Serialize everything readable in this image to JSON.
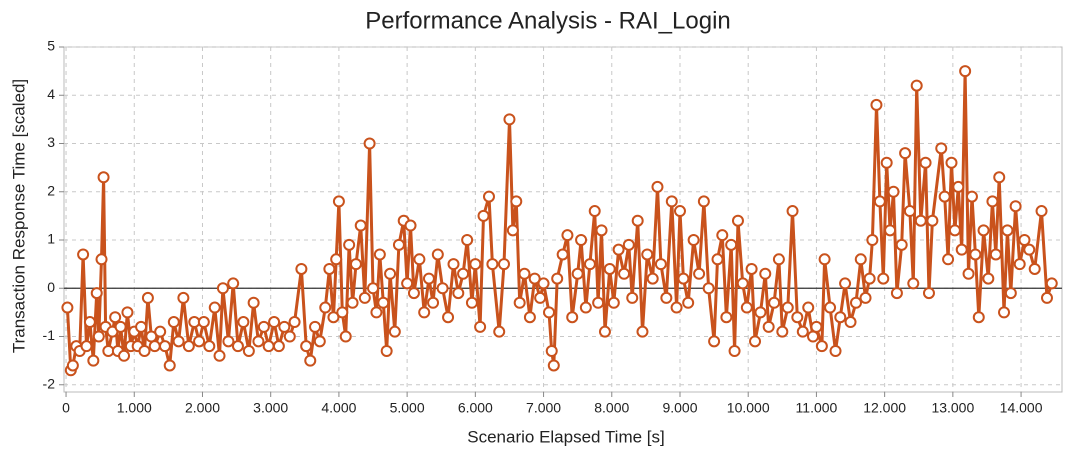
{
  "chart_data": {
    "type": "line",
    "title": "Performance Analysis - RAI_Login",
    "x_label": "Scenario Elapsed Time [s]",
    "y_label": "Transaction Response Time [scaled]",
    "color": "#c9521c",
    "grid": true,
    "xlim": [
      -0.03,
      14.6
    ],
    "ylim": [
      -2.15,
      5
    ],
    "xticks": [
      0,
      {
        "value": 1,
        "label": "1.000"
      },
      {
        "value": 2,
        "label": "2.000"
      },
      {
        "value": 3,
        "label": "3.000"
      },
      {
        "value": 4,
        "label": "4.000"
      },
      {
        "value": 5,
        "label": "5.000"
      },
      {
        "value": 6,
        "label": "6.000"
      },
      {
        "value": 7,
        "label": "7.000"
      },
      {
        "value": 8,
        "label": "8.000"
      },
      {
        "value": 9,
        "label": "9.000"
      },
      {
        "value": 10,
        "label": "10.000"
      },
      {
        "value": 11,
        "label": "11.000"
      },
      {
        "value": 12,
        "label": "12.000"
      },
      {
        "value": 13,
        "label": "13.000"
      },
      {
        "value": 14,
        "label": "14.000"
      }
    ],
    "yticks": [
      -2,
      -1,
      0,
      1,
      2,
      3,
      4,
      5
    ],
    "x": [
      0.02,
      0.07,
      0.1,
      0.15,
      0.2,
      0.25,
      0.3,
      0.35,
      0.4,
      0.45,
      0.48,
      0.52,
      0.55,
      0.58,
      0.62,
      0.68,
      0.72,
      0.76,
      0.8,
      0.85,
      0.9,
      0.95,
      1.0,
      1.05,
      1.1,
      1.15,
      1.2,
      1.25,
      1.3,
      1.38,
      1.45,
      1.52,
      1.58,
      1.65,
      1.72,
      1.8,
      1.88,
      1.95,
      2.02,
      2.1,
      2.18,
      2.25,
      2.3,
      2.38,
      2.45,
      2.52,
      2.6,
      2.68,
      2.75,
      2.82,
      2.9,
      2.97,
      3.05,
      3.12,
      3.2,
      3.28,
      3.35,
      3.45,
      3.52,
      3.58,
      3.65,
      3.72,
      3.8,
      3.86,
      3.92,
      3.96,
      4.0,
      4.05,
      4.1,
      4.15,
      4.2,
      4.25,
      4.32,
      4.38,
      4.45,
      4.5,
      4.55,
      4.6,
      4.65,
      4.7,
      4.75,
      4.82,
      4.88,
      4.95,
      5.0,
      5.05,
      5.1,
      5.18,
      5.25,
      5.32,
      5.38,
      5.45,
      5.52,
      5.6,
      5.68,
      5.75,
      5.82,
      5.88,
      5.95,
      6.0,
      6.07,
      6.12,
      6.2,
      6.25,
      6.35,
      6.42,
      6.5,
      6.55,
      6.6,
      6.65,
      6.72,
      6.8,
      6.87,
      6.95,
      7.0,
      7.08,
      7.12,
      7.15,
      7.2,
      7.28,
      7.35,
      7.42,
      7.5,
      7.55,
      7.62,
      7.68,
      7.75,
      7.8,
      7.85,
      7.9,
      7.97,
      8.03,
      8.1,
      8.18,
      8.25,
      8.3,
      8.38,
      8.45,
      8.52,
      8.6,
      8.67,
      8.72,
      8.8,
      8.88,
      8.95,
      9.0,
      9.05,
      9.12,
      9.2,
      9.28,
      9.35,
      9.42,
      9.5,
      9.55,
      9.62,
      9.68,
      9.75,
      9.8,
      9.85,
      9.92,
      9.98,
      10.05,
      10.1,
      10.18,
      10.25,
      10.3,
      10.38,
      10.45,
      10.5,
      10.58,
      10.65,
      10.72,
      10.8,
      10.88,
      10.95,
      11.0,
      11.08,
      11.12,
      11.2,
      11.28,
      11.35,
      11.42,
      11.5,
      11.58,
      11.65,
      11.72,
      11.78,
      11.82,
      11.88,
      11.93,
      11.98,
      12.03,
      12.08,
      12.13,
      12.18,
      12.25,
      12.3,
      12.37,
      12.42,
      12.47,
      12.53,
      12.6,
      12.65,
      12.7,
      12.83,
      12.88,
      12.93,
      12.98,
      13.03,
      13.08,
      13.13,
      13.18,
      13.23,
      13.28,
      13.33,
      13.38,
      13.45,
      13.52,
      13.58,
      13.63,
      13.68,
      13.75,
      13.8,
      13.85,
      13.92,
      13.98,
      14.05,
      14.12,
      14.2,
      14.3,
      14.38,
      14.45
    ],
    "values": [
      -0.4,
      -1.7,
      -1.6,
      -1.2,
      -1.3,
      0.7,
      -1.2,
      -0.7,
      -1.5,
      -0.1,
      -1.0,
      0.6,
      2.3,
      -0.8,
      -1.3,
      -0.9,
      -0.6,
      -1.3,
      -0.8,
      -1.4,
      -0.5,
      -1.2,
      -0.9,
      -1.2,
      -0.8,
      -1.3,
      -0.2,
      -1.0,
      -1.2,
      -0.9,
      -1.2,
      -1.6,
      -0.7,
      -1.1,
      -0.2,
      -1.2,
      -0.7,
      -1.1,
      -0.7,
      -1.2,
      -0.4,
      -1.4,
      0.0,
      -1.1,
      0.1,
      -1.2,
      -0.7,
      -1.3,
      -0.3,
      -1.1,
      -0.8,
      -1.2,
      -0.7,
      -1.2,
      -0.8,
      -1.0,
      -0.7,
      0.4,
      -1.2,
      -1.5,
      -0.8,
      -1.1,
      -0.4,
      0.4,
      -0.6,
      0.6,
      1.8,
      -0.5,
      -1.0,
      0.9,
      -0.3,
      0.5,
      1.3,
      -0.2,
      3.0,
      0.0,
      -0.5,
      0.7,
      -0.3,
      -1.3,
      0.3,
      -0.9,
      0.9,
      1.4,
      0.1,
      1.3,
      -0.1,
      0.6,
      -0.5,
      0.2,
      -0.3,
      0.7,
      0.0,
      -0.6,
      0.5,
      -0.1,
      0.3,
      1.0,
      -0.3,
      0.5,
      -0.8,
      1.5,
      1.9,
      0.5,
      -0.9,
      0.5,
      3.5,
      1.2,
      1.8,
      -0.3,
      0.3,
      -0.6,
      0.2,
      -0.2,
      0.1,
      -0.5,
      -1.3,
      -1.6,
      0.2,
      0.7,
      1.1,
      -0.6,
      0.3,
      1.0,
      -0.4,
      0.5,
      1.6,
      -0.3,
      1.2,
      -0.9,
      0.4,
      -0.3,
      0.8,
      0.3,
      0.9,
      -0.2,
      1.4,
      -0.9,
      0.7,
      0.2,
      2.1,
      0.5,
      -0.2,
      1.8,
      -0.4,
      1.6,
      0.2,
      -0.3,
      1.0,
      0.3,
      1.8,
      0.0,
      -1.1,
      0.6,
      1.1,
      -0.6,
      0.9,
      -1.3,
      1.4,
      0.1,
      -0.4,
      0.4,
      -1.1,
      -0.5,
      0.3,
      -0.8,
      -0.3,
      0.6,
      -0.9,
      -0.4,
      1.6,
      -0.6,
      -0.9,
      -0.4,
      -1.0,
      -0.8,
      -1.2,
      0.6,
      -0.4,
      -1.3,
      -0.6,
      0.1,
      -0.7,
      -0.3,
      0.6,
      -0.2,
      0.2,
      1.0,
      3.8,
      1.8,
      0.2,
      2.6,
      1.2,
      2.0,
      -0.1,
      0.9,
      2.8,
      1.6,
      0.1,
      4.2,
      1.4,
      2.6,
      -0.1,
      1.4,
      2.9,
      1.9,
      0.6,
      2.6,
      1.2,
      2.1,
      0.8,
      4.5,
      0.3,
      1.9,
      0.7,
      -0.6,
      1.2,
      0.2,
      1.8,
      0.7,
      2.3,
      -0.5,
      1.2,
      -0.1,
      1.7,
      0.5,
      1.0,
      0.8,
      0.4,
      1.6,
      -0.2,
      0.1
    ]
  }
}
